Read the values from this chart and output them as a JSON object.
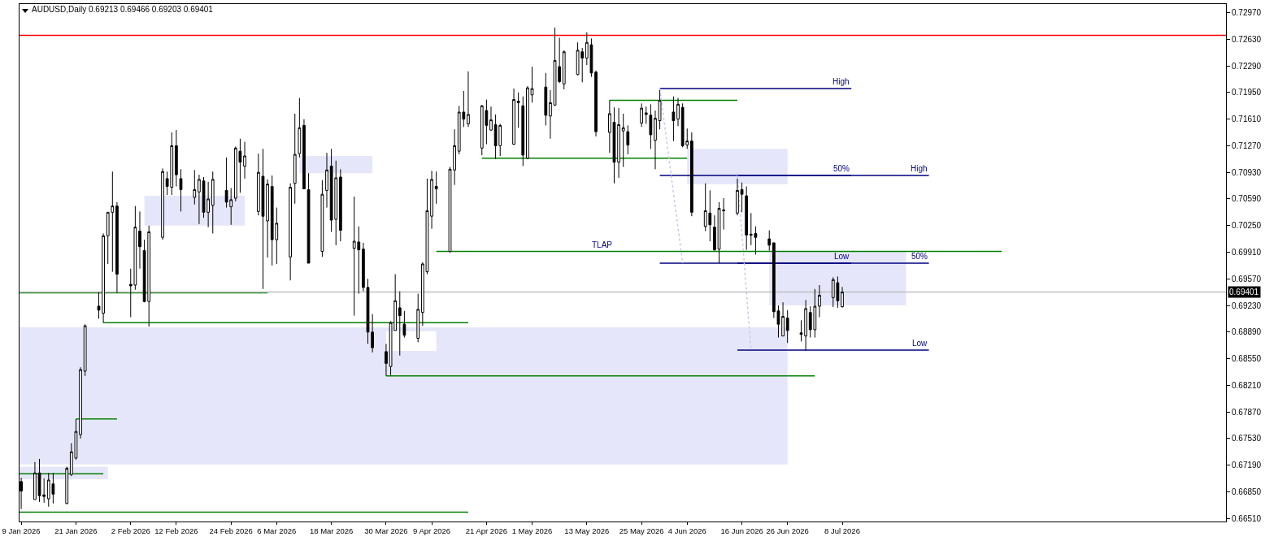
{
  "chart_data": {
    "type": "candlestick",
    "title": "AUDUSD,Daily 0.69213 0.69466 0.69203 0.69401",
    "color": "#000000",
    "x": [
      "2026-01-09",
      "2026-01-12",
      "2026-01-13",
      "2026-01-14",
      "2026-01-15",
      "2026-01-16",
      "2026-01-19",
      "2026-01-20",
      "2026-01-21",
      "2026-01-22",
      "2026-01-23",
      "2026-01-26",
      "2026-01-27",
      "2026-01-28",
      "2026-01-29",
      "2026-01-30",
      "2026-02-02",
      "2026-02-03",
      "2026-02-04",
      "2026-02-05",
      "2026-02-06",
      "2026-02-09",
      "2026-02-10",
      "2026-02-11",
      "2026-02-12",
      "2026-02-13",
      "2026-02-16",
      "2026-02-17",
      "2026-02-18",
      "2026-02-19",
      "2026-02-20",
      "2026-02-23",
      "2026-02-24",
      "2026-02-25",
      "2026-02-26",
      "2026-02-27",
      "2026-03-02",
      "2026-03-03",
      "2026-03-04",
      "2026-03-05",
      "2026-03-06",
      "2026-03-09",
      "2026-03-10",
      "2026-03-11",
      "2026-03-12",
      "2026-03-13",
      "2026-03-16",
      "2026-03-17",
      "2026-03-18",
      "2026-03-19",
      "2026-03-20",
      "2026-03-23",
      "2026-03-24",
      "2026-03-25",
      "2026-03-26",
      "2026-03-27",
      "2026-03-30",
      "2026-03-31",
      "2026-04-01",
      "2026-04-02",
      "2026-04-03",
      "2026-04-06",
      "2026-04-07",
      "2026-04-08",
      "2026-04-09",
      "2026-04-10",
      "2026-04-13",
      "2026-04-14",
      "2026-04-15",
      "2026-04-16",
      "2026-04-17",
      "2026-04-20",
      "2026-04-21",
      "2026-04-22",
      "2026-04-23",
      "2026-04-24",
      "2026-04-27",
      "2026-04-28",
      "2026-04-29",
      "2026-04-30",
      "2026-05-01",
      "2026-05-04",
      "2026-05-05",
      "2026-05-06",
      "2026-05-07",
      "2026-05-08",
      "2026-05-11",
      "2026-05-12",
      "2026-05-13",
      "2026-05-14",
      "2026-05-15",
      "2026-05-18",
      "2026-05-19",
      "2026-05-20",
      "2026-05-21",
      "2026-05-22",
      "2026-05-25",
      "2026-05-26",
      "2026-05-27",
      "2026-05-28",
      "2026-05-29",
      "2026-06-01",
      "2026-06-02",
      "2026-06-03",
      "2026-06-04",
      "2026-06-05",
      "2026-06-08",
      "2026-06-09",
      "2026-06-10",
      "2026-06-11",
      "2026-06-12",
      "2026-06-15",
      "2026-06-16",
      "2026-06-17",
      "2026-06-18",
      "2026-06-19",
      "2026-06-22",
      "2026-06-23",
      "2026-06-24",
      "2026-06-25",
      "2026-06-26",
      "2026-06-29",
      "2026-06-30",
      "2026-07-01",
      "2026-07-02",
      "2026-07-03",
      "2026-07-06",
      "2026-07-07",
      "2026-07-08"
    ],
    "ohlc": [
      [
        0.6698,
        0.6703,
        0.6663,
        0.6686
      ],
      [
        0.6675,
        0.6723,
        0.6675,
        0.6709
      ],
      [
        0.6709,
        0.6727,
        0.6672,
        0.668
      ],
      [
        0.6681,
        0.6702,
        0.6671,
        0.6679
      ],
      [
        0.6676,
        0.6709,
        0.6666,
        0.67
      ],
      [
        0.6695,
        0.6709,
        0.667,
        0.6682
      ],
      [
        0.667,
        0.6717,
        0.6669,
        0.6715
      ],
      [
        0.6707,
        0.6747,
        0.6705,
        0.6736
      ],
      [
        0.6728,
        0.6778,
        0.6726,
        0.6762
      ],
      [
        0.6758,
        0.6844,
        0.6753,
        0.6841
      ],
      [
        0.6839,
        0.6899,
        0.6833,
        0.6897
      ],
      [
        0.6922,
        0.694,
        0.6906,
        0.6917
      ],
      [
        0.6913,
        0.7015,
        0.6901,
        0.7012
      ],
      [
        0.7012,
        0.7042,
        0.6976,
        0.7042
      ],
      [
        0.7042,
        0.7094,
        0.6966,
        0.705
      ],
      [
        0.705,
        0.7055,
        0.6939,
        0.6963
      ],
      [
        0.695,
        0.697,
        0.6908,
        0.6948
      ],
      [
        0.6949,
        0.705,
        0.6943,
        0.7023
      ],
      [
        0.7018,
        0.7043,
        0.697,
        0.6998
      ],
      [
        0.6993,
        0.7007,
        0.6927,
        0.6928
      ],
      [
        0.6928,
        0.7025,
        0.6896,
        0.7017
      ],
      [
        0.701,
        0.7098,
        0.7007,
        0.7094
      ],
      [
        0.7085,
        0.7094,
        0.7064,
        0.7075
      ],
      [
        0.7074,
        0.7144,
        0.7064,
        0.7127
      ],
      [
        0.7127,
        0.7147,
        0.7075,
        0.709
      ],
      [
        0.7085,
        0.7097,
        0.7043,
        0.7071
      ],
      [
        0.7061,
        0.7096,
        0.7052,
        0.7071
      ],
      [
        0.7068,
        0.709,
        0.7027,
        0.7084
      ],
      [
        0.7082,
        0.7087,
        0.7035,
        0.7042
      ],
      [
        0.7042,
        0.7081,
        0.7023,
        0.7059
      ],
      [
        0.7051,
        0.7094,
        0.7015,
        0.7084
      ],
      [
        0.707,
        0.7112,
        0.7048,
        0.7055
      ],
      [
        0.7049,
        0.7073,
        0.7026,
        0.7058
      ],
      [
        0.706,
        0.7126,
        0.7056,
        0.7124
      ],
      [
        0.712,
        0.7136,
        0.7067,
        0.7106
      ],
      [
        0.7101,
        0.7132,
        0.7085,
        0.7114
      ],
      [
        0.7043,
        0.7117,
        0.7038,
        0.7093
      ],
      [
        0.7088,
        0.7123,
        0.6944,
        0.7037
      ],
      [
        0.7031,
        0.7084,
        0.6984,
        0.7078
      ],
      [
        0.7075,
        0.7089,
        0.6974,
        0.7007
      ],
      [
        0.7007,
        0.7048,
        0.6976,
        0.7028
      ],
      [
        0.6985,
        0.7079,
        0.6955,
        0.7074
      ],
      [
        0.7079,
        0.7168,
        0.7053,
        0.7116
      ],
      [
        0.7117,
        0.7188,
        0.7112,
        0.715
      ],
      [
        0.7153,
        0.7161,
        0.7072,
        0.7072
      ],
      [
        0.7071,
        0.7092,
        0.6977,
        0.6977
      ],
      [
        0.6992,
        0.7083,
        0.6985,
        0.7065
      ],
      [
        0.707,
        0.7118,
        0.7048,
        0.7096
      ],
      [
        0.7101,
        0.7123,
        0.7017,
        0.7032
      ],
      [
        0.7033,
        0.7108,
        0.7,
        0.7086
      ],
      [
        0.7087,
        0.7097,
        0.7005,
        0.7019
      ],
      [
        0.6996,
        0.7062,
        0.691,
        0.7005
      ],
      [
        0.7004,
        0.7024,
        0.6938,
        0.6994
      ],
      [
        0.6995,
        0.7003,
        0.6941,
        0.6946
      ],
      [
        0.6946,
        0.6957,
        0.6874,
        0.6889
      ],
      [
        0.6889,
        0.6912,
        0.6863,
        0.6869
      ],
      [
        0.6864,
        0.6874,
        0.6833,
        0.6849
      ],
      [
        0.6845,
        0.6903,
        0.6834,
        0.6901
      ],
      [
        0.6891,
        0.6963,
        0.6891,
        0.6929
      ],
      [
        0.692,
        0.6941,
        0.6859,
        0.691
      ],
      [
        0.6899,
        0.6916,
        0.6882,
        0.6885
      ],
      [
        0.6881,
        0.6938,
        0.6876,
        0.6918
      ],
      [
        0.6914,
        0.6978,
        0.6897,
        0.6976
      ],
      [
        0.6966,
        0.7085,
        0.6963,
        0.7044
      ],
      [
        0.7037,
        0.7095,
        0.7021,
        0.7084
      ],
      [
        0.7075,
        0.7094,
        0.7053,
        0.7072
      ],
      [
        0.6992,
        0.71,
        0.699,
        0.7097
      ],
      [
        0.7096,
        0.7148,
        0.7077,
        0.7127
      ],
      [
        0.712,
        0.7178,
        0.7116,
        0.717
      ],
      [
        0.717,
        0.7197,
        0.7151,
        0.7161
      ],
      [
        0.7155,
        0.7222,
        0.7151,
        0.7167
      ],
      [
        0.7124,
        0.7179,
        0.7115,
        0.7178
      ],
      [
        0.7172,
        0.7186,
        0.7129,
        0.7153
      ],
      [
        0.7147,
        0.7177,
        0.7146,
        0.716
      ],
      [
        0.7154,
        0.7167,
        0.711,
        0.7127
      ],
      [
        0.7127,
        0.7155,
        0.7114,
        0.7153
      ],
      [
        0.7129,
        0.72,
        0.7128,
        0.7186
      ],
      [
        0.7184,
        0.7195,
        0.715,
        0.7182
      ],
      [
        0.7178,
        0.719,
        0.7101,
        0.7115
      ],
      [
        0.7111,
        0.7203,
        0.711,
        0.7201
      ],
      [
        0.7192,
        0.7228,
        0.7182,
        0.72
      ],
      [
        0.7202,
        0.722,
        0.7153,
        0.7166
      ],
      [
        0.7165,
        0.7198,
        0.7136,
        0.7182
      ],
      [
        0.7179,
        0.7278,
        0.7178,
        0.7236
      ],
      [
        0.7228,
        0.7265,
        0.7207,
        0.7209
      ],
      [
        0.7206,
        0.7249,
        0.7199,
        0.7247
      ],
      [
        0.7218,
        0.7259,
        0.7217,
        0.7249
      ],
      [
        0.7247,
        0.7252,
        0.7208,
        0.7239
      ],
      [
        0.7239,
        0.7272,
        0.723,
        0.7259
      ],
      [
        0.7256,
        0.7264,
        0.7215,
        0.722
      ],
      [
        0.7221,
        0.7223,
        0.7139,
        0.7145
      ],
      [
        0.7144,
        0.7185,
        0.7118,
        0.7168
      ],
      [
        0.7157,
        0.7176,
        0.7079,
        0.7106
      ],
      [
        0.7106,
        0.7175,
        0.7086,
        0.7154
      ],
      [
        0.7146,
        0.7168,
        0.71,
        0.715
      ],
      [
        0.7145,
        0.7153,
        0.7116,
        0.7128
      ],
      [
        0.7156,
        0.7181,
        0.7151,
        0.7175
      ],
      [
        0.7169,
        0.7177,
        0.7155,
        0.7167
      ],
      [
        0.7166,
        0.718,
        0.7123,
        0.7141
      ],
      [
        0.7134,
        0.7172,
        0.7097,
        0.7162
      ],
      [
        0.7159,
        0.7198,
        0.7148,
        0.7185
      ],
      [
        0.717,
        0.719,
        0.7133,
        0.7159
      ],
      [
        0.7161,
        0.7188,
        0.7152,
        0.718
      ],
      [
        0.7176,
        0.7181,
        0.7125,
        0.7127
      ],
      [
        0.7128,
        0.7149,
        0.7123,
        0.7133
      ],
      [
        0.7133,
        0.7144,
        0.7037,
        0.7042
      ],
      [
        0.7024,
        0.7079,
        0.7018,
        0.7044
      ],
      [
        0.7041,
        0.707,
        0.7005,
        0.7026
      ],
      [
        0.7023,
        0.7038,
        0.6993,
        0.6994
      ],
      [
        0.6995,
        0.7055,
        0.6977,
        0.7047
      ],
      [
        0.7045,
        0.706,
        0.702,
        0.7044
      ],
      [
        0.7041,
        0.7085,
        0.7038,
        0.707
      ],
      [
        0.7071,
        0.708,
        0.7042,
        0.7065
      ],
      [
        0.7063,
        0.7075,
        0.6994,
        0.7013
      ],
      [
        0.7014,
        0.7041,
        0.7,
        0.7013
      ],
      [
        0.7015,
        0.7024,
        0.6988,
        0.701
      ],
      [
        0.7008,
        0.7019,
        0.6993,
        0.7
      ],
      [
        0.7003,
        0.7003,
        0.6907,
        0.6915
      ],
      [
        0.6916,
        0.6923,
        0.6882,
        0.6899
      ],
      [
        0.6884,
        0.6927,
        0.6884,
        0.6909
      ],
      [
        0.6907,
        0.6917,
        0.6875,
        0.6891
      ],
      [
        0.6888,
        0.6904,
        0.6877,
        0.6886
      ],
      [
        0.6884,
        0.693,
        0.6865,
        0.6919
      ],
      [
        0.6914,
        0.6922,
        0.6882,
        0.6892
      ],
      [
        0.6892,
        0.6944,
        0.6882,
        0.6922
      ],
      [
        0.6922,
        0.6949,
        0.6908,
        0.6936
      ],
      [
        0.6933,
        0.6959,
        0.6921,
        0.6956
      ],
      [
        0.6952,
        0.696,
        0.692,
        0.6929
      ],
      [
        0.69213,
        0.69466,
        0.69203,
        0.69401
      ]
    ],
    "series": [
      {
        "type": "line",
        "x": [
          "2026-01-08T15:00",
          "2026-01-28"
        ],
        "values": [
          null,
          null
        ],
        "lower": [
          0.6701,
          0.6701
        ],
        "upper": [
          0.6717,
          0.6717
        ],
        "color": "#e6e6fa"
      },
      {
        "type": "line",
        "x": [
          "2026-01-08T15:00",
          "2026-06-26"
        ],
        "values": [
          null,
          null
        ],
        "lower": [
          0.672,
          0.672
        ],
        "upper": [
          0.6895,
          0.6895
        ],
        "color": "#e6e6fa"
      },
      {
        "type": "line",
        "x": [
          "2026-03-30",
          "2026-04-10"
        ],
        "values": [
          null,
          null
        ],
        "lower": [
          0.6865,
          0.6865
        ],
        "upper": [
          0.689,
          0.689
        ],
        "color": "#ffffff"
      },
      {
        "type": "line",
        "x": [
          "2026-02-05",
          "2026-02-27"
        ],
        "values": [
          null,
          null
        ],
        "lower": [
          0.7025,
          0.7025
        ],
        "upper": [
          0.7063,
          0.7063
        ],
        "color": "#e6e6fa"
      },
      {
        "type": "line",
        "x": [
          "2026-03-11",
          "2026-03-27"
        ],
        "values": [
          null,
          null
        ],
        "lower": [
          0.7092,
          0.7092
        ],
        "upper": [
          0.7114,
          0.7114
        ],
        "color": "#e6e6fa"
      },
      {
        "type": "line",
        "x": [
          "2026-06-04",
          "2026-06-26"
        ],
        "values": [
          null,
          null
        ],
        "lower": [
          0.7078,
          0.7078
        ],
        "upper": [
          0.7123,
          0.7123
        ],
        "color": "#e6e6fa"
      },
      {
        "type": "line",
        "x": [
          "2026-06-22",
          "2026-07-22"
        ],
        "values": [
          null,
          null
        ],
        "lower": [
          0.6923,
          0.6923
        ],
        "upper": [
          0.6992,
          0.6992
        ],
        "color": "#e6e6fa"
      },
      {
        "type": "line",
        "x": [
          "2026-01-08T15:00",
          "2026-04-17"
        ],
        "values": [
          0.6659,
          0.6659
        ],
        "color": "#008000"
      },
      {
        "type": "line",
        "x": [
          "2026-01-08T15:00",
          "2026-01-27"
        ],
        "values": [
          0.6708,
          0.6708
        ],
        "color": "#008000"
      },
      {
        "type": "line",
        "x": [
          "2026-01-21",
          "2026-01-30"
        ],
        "values": [
          0.6778,
          0.6778
        ],
        "color": "#008000"
      },
      {
        "type": "line",
        "x": [
          "2026-01-27",
          "2026-04-17"
        ],
        "values": [
          0.6901,
          0.6901
        ],
        "color": "#008000"
      },
      {
        "type": "line",
        "x": [
          "2026-01-08T15:00",
          "2026-03-04"
        ],
        "values": [
          0.6939,
          0.6939
        ],
        "color": "#008000"
      },
      {
        "type": "line",
        "x": [
          "2026-03-30",
          "2026-07-02"
        ],
        "values": [
          0.6833,
          0.6833
        ],
        "color": "#008000"
      },
      {
        "type": "line",
        "x": [
          "2026-04-10",
          "2026-08-12"
        ],
        "values": [
          0.6992,
          0.6992
        ],
        "color": "#008000"
      },
      {
        "type": "line",
        "x": [
          "2026-04-20",
          "2026-06-04"
        ],
        "values": [
          0.7111,
          0.7111
        ],
        "color": "#008000"
      },
      {
        "type": "line",
        "x": [
          "2026-05-18",
          "2026-06-15"
        ],
        "values": [
          0.7185,
          0.7185
        ],
        "color": "#008000"
      },
      {
        "type": "line",
        "x": [
          "2026-05-29",
          "2026-07-10"
        ],
        "values": [
          0.72,
          0.72
        ],
        "color": "#000080"
      },
      {
        "type": "line",
        "x": [
          "2026-05-29",
          "2026-07-10"
        ],
        "values": [
          0.7089,
          0.7089
        ],
        "color": "#000080"
      },
      {
        "type": "line",
        "x": [
          "2026-05-29",
          "2026-07-10"
        ],
        "values": [
          0.6977,
          0.6977
        ],
        "color": "#000080"
      },
      {
        "type": "line",
        "x": [
          "2026-06-15",
          "2026-07-27"
        ],
        "values": [
          0.7089,
          0.7089
        ],
        "color": "#000080"
      },
      {
        "type": "line",
        "x": [
          "2026-06-15",
          "2026-07-27"
        ],
        "values": [
          0.6977,
          0.6977
        ],
        "color": "#000080"
      },
      {
        "type": "line",
        "x": [
          "2026-06-15",
          "2026-07-27"
        ],
        "values": [
          0.6866,
          0.6866
        ],
        "color": "#000080"
      },
      {
        "type": "line",
        "x": [
          "2026-05-29",
          "2026-06-03"
        ],
        "values": [
          0.72,
          0.6977
        ],
        "color": "#c8c8e6",
        "line_style": "dotted"
      },
      {
        "type": "line",
        "x": [
          "2026-06-15",
          "2026-06-18"
        ],
        "values": [
          0.7089,
          0.6866
        ],
        "color": "#c8c8e6",
        "line_style": "dotted"
      }
    ],
    "ref_lines": [
      {
        "axis": "y",
        "value": 0.7268,
        "color": "#ff0000"
      },
      {
        "axis": "y",
        "value": 0.69401,
        "label": "0.69401",
        "color": "#c0c0c0"
      }
    ],
    "annotations": [
      {
        "text": "TLAP",
        "x": "2026-05-19",
        "y": 0.6992
      },
      {
        "text": "High",
        "x": "2026-07-10",
        "y": 0.72
      },
      {
        "text": "50%",
        "x": "2026-07-10",
        "y": 0.7089
      },
      {
        "text": "Low",
        "x": "2026-07-10",
        "y": 0.6977
      },
      {
        "text": "High",
        "x": "2026-07-27",
        "y": 0.7089
      },
      {
        "text": "50%",
        "x": "2026-07-27",
        "y": 0.6977
      },
      {
        "text": "Low",
        "x": "2026-07-27",
        "y": 0.6866
      }
    ],
    "xlim": [
      "2026-01-08T15:00",
      "2026-09-30T03:00"
    ],
    "xticks": [
      {
        "value": "2026-01-09",
        "label": "9 Jan 2026"
      },
      {
        "value": "2026-01-21",
        "label": "21 Jan 2026"
      },
      {
        "value": "2026-02-02",
        "label": "2 Feb 2026"
      },
      {
        "value": "2026-02-12",
        "label": "12 Feb 2026"
      },
      {
        "value": "2026-02-24",
        "label": "24 Feb 2026"
      },
      {
        "value": "2026-03-06",
        "label": "6 Mar 2026"
      },
      {
        "value": "2026-03-18",
        "label": "18 Mar 2026"
      },
      {
        "value": "2026-03-30",
        "label": "30 Mar 2026"
      },
      {
        "value": "2026-04-09",
        "label": "9 Apr 2026"
      },
      {
        "value": "2026-04-21",
        "label": "21 Apr 2026"
      },
      {
        "value": "2026-05-01",
        "label": "1 May 2026"
      },
      {
        "value": "2026-05-13",
        "label": "13 May 2026"
      },
      {
        "value": "2026-05-25",
        "label": "25 May 2026"
      },
      {
        "value": "2026-06-04",
        "label": "4 Jun 2026"
      },
      {
        "value": "2026-06-16",
        "label": "16 Jun 2026"
      },
      {
        "value": "2026-06-26",
        "label": "26 Jun 2026"
      },
      {
        "value": "2026-07-08",
        "label": "8 Jul 2026"
      }
    ],
    "ylim": [
      0.6647,
      0.7308
    ],
    "yticks": [
      {
        "value": 0.7297,
        "label": "0.72970"
      },
      {
        "value": 0.7263,
        "label": "0.72630"
      },
      {
        "value": 0.7229,
        "label": "0.72290"
      },
      {
        "value": 0.7195,
        "label": "0.71950"
      },
      {
        "value": 0.7161,
        "label": "0.71610"
      },
      {
        "value": 0.7127,
        "label": "0.71270"
      },
      {
        "value": 0.7093,
        "label": "0.70930"
      },
      {
        "value": 0.7059,
        "label": "0.70590"
      },
      {
        "value": 0.7025,
        "label": "0.70250"
      },
      {
        "value": 0.6991,
        "label": "0.69910"
      },
      {
        "value": 0.6957,
        "label": "0.69570"
      },
      {
        "value": 0.6923,
        "label": "0.69230"
      },
      {
        "value": 0.6889,
        "label": "0.68890"
      },
      {
        "value": 0.6855,
        "label": "0.68550"
      },
      {
        "value": 0.6821,
        "label": "0.68210"
      },
      {
        "value": 0.6787,
        "label": "0.67870"
      },
      {
        "value": 0.6753,
        "label": "0.67530"
      },
      {
        "value": 0.6719,
        "label": "0.67190"
      },
      {
        "value": 0.6685,
        "label": "0.66850"
      },
      {
        "value": 0.6651,
        "label": "0.66510"
      }
    ],
    "grid": false
  }
}
